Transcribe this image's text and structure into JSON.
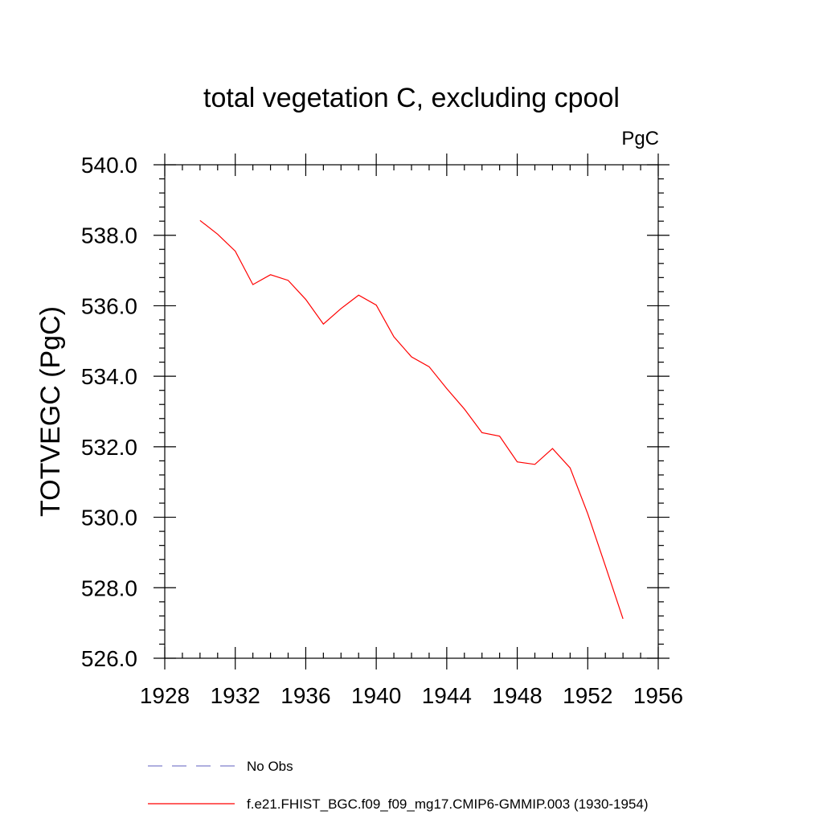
{
  "chart_data": {
    "type": "line",
    "title": "total vegetation C, excluding cpool",
    "units": "PgC",
    "ylabel": "TOTVEGC  (PgC)",
    "xlabel": "",
    "xlim": [
      1928,
      1956
    ],
    "ylim": [
      526.0,
      540.0
    ],
    "x_ticks": [
      "1928",
      "1932",
      "1936",
      "1940",
      "1944",
      "1948",
      "1952",
      "1956"
    ],
    "y_ticks": [
      "540.0",
      "538.0",
      "536.0",
      "534.0",
      "532.0",
      "530.0",
      "528.0",
      "526.0"
    ],
    "grid": false,
    "legend": [
      {
        "label": "No Obs",
        "color": "#7f7fcc",
        "style": "dashed"
      },
      {
        "label": "f.e21.FHIST_BGC.f09_f09_mg17.CMIP6-GMMIP.003 (1930-1954)",
        "color": "#ff0000",
        "style": "solid"
      }
    ],
    "series": [
      {
        "name": "f.e21.FHIST_BGC.f09_f09_mg17.CMIP6-GMMIP.003 (1930-1954)",
        "color": "#ff0000",
        "x": [
          1930,
          1931,
          1932,
          1933,
          1934,
          1935,
          1936,
          1937,
          1938,
          1939,
          1940,
          1941,
          1942,
          1943,
          1944,
          1945,
          1946,
          1947,
          1948,
          1949,
          1950,
          1951,
          1952,
          1953,
          1954
        ],
        "y": [
          538.42,
          538.03,
          537.55,
          536.6,
          536.88,
          536.72,
          536.18,
          535.48,
          535.92,
          536.3,
          536.02,
          535.12,
          534.55,
          534.27,
          533.65,
          533.07,
          532.4,
          532.3,
          531.57,
          531.5,
          531.95,
          531.4,
          530.1,
          528.62,
          527.12
        ]
      }
    ]
  }
}
